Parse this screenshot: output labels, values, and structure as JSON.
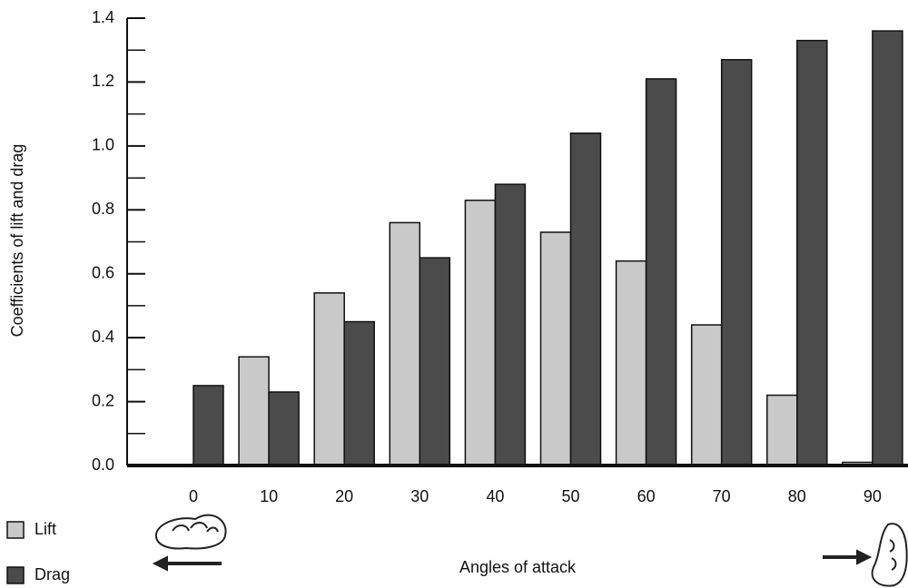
{
  "chart_data": {
    "type": "bar",
    "x_label": "Angles of attack",
    "y_label": "Coefficients of lift and drag",
    "categories": [
      "0",
      "10",
      "20",
      "30",
      "40",
      "50",
      "60",
      "70",
      "80",
      "90"
    ],
    "series": [
      {
        "name": "Lift",
        "color": "#c9c9c9",
        "values": [
          0,
          0.34,
          0.54,
          0.76,
          0.83,
          0.73,
          0.64,
          0.44,
          0.22,
          0.01
        ]
      },
      {
        "name": "Drag",
        "color": "#4b4b4b",
        "values": [
          0.25,
          0.23,
          0.45,
          0.65,
          0.88,
          1.04,
          1.21,
          1.27,
          1.33,
          1.36
        ]
      }
    ],
    "ylim": [
      0,
      1.4
    ],
    "yticks": [
      {
        "value": 0,
        "label": "0.0"
      },
      0.2,
      0.4,
      0.6,
      0.8,
      {
        "value": 1,
        "label": "1.0"
      },
      1.2,
      1.4
    ],
    "yticks_minor": [
      0.1,
      0.3,
      0.5,
      0.7,
      0.9,
      1.1,
      1.3
    ],
    "legend": "bottom-left"
  }
}
